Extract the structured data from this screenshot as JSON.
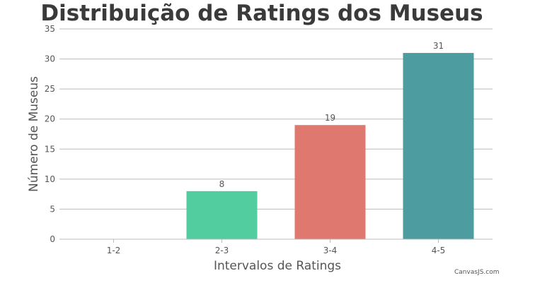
{
  "chart_data": {
    "type": "bar",
    "title": "Distribuição de Ratings dos Museus",
    "xlabel": "Intervalos de Ratings",
    "ylabel": "Número de Museus",
    "categories": [
      "1-2",
      "2-3",
      "3-4",
      "4-5"
    ],
    "values": [
      0,
      8,
      19,
      31
    ],
    "data_labels": [
      "",
      "8",
      "19",
      "31"
    ],
    "ylim": [
      0,
      35
    ],
    "yticks": [
      0,
      5,
      10,
      15,
      20,
      25,
      30,
      35
    ],
    "grid": true,
    "legend": "none",
    "colors": [
      "#4f81bc",
      "#51cda0",
      "#df7970",
      "#4c9ca0"
    ]
  },
  "credit": "CanvasJS.com"
}
